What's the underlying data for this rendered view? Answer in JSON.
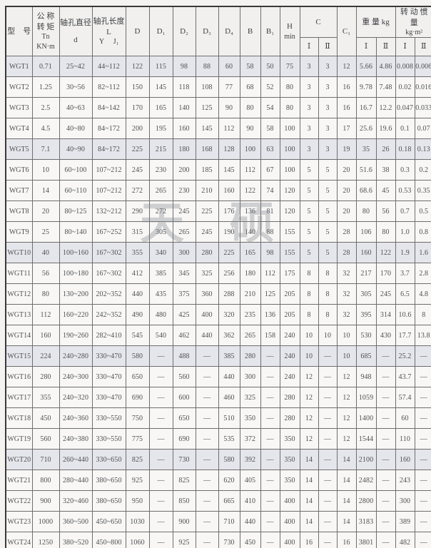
{
  "watermark": "天硕",
  "table": {
    "header": {
      "model": "型　号",
      "torque_lines": [
        "公 称",
        "转 矩",
        "Tn",
        "KN·m"
      ],
      "bore_dia_lines": [
        "轴孔直径",
        "d"
      ],
      "bore_len_lines": [
        "轴孔长度",
        "L"
      ],
      "bore_len_y": "Y",
      "bore_len_j": "J₁",
      "d": "D",
      "d1": "D₁",
      "d2": "D₂",
      "d3": "D₃",
      "d4": "D₄",
      "b": "B",
      "b1": "B₁",
      "h_lines": [
        "H",
        "min"
      ],
      "c": "C",
      "c1": "C₁",
      "weight": "重 量 kg",
      "inertia_lines": [
        "转 动 惯 量",
        "kg·m²"
      ],
      "sub_i": "Ⅰ",
      "sub_ii": "Ⅱ"
    },
    "rows": [
      [
        "WGT1",
        "0.71",
        "25~42",
        "44~112",
        "122",
        "115",
        "98",
        "88",
        "60",
        "58",
        "50",
        "75",
        "3",
        "3",
        "12",
        "5.66",
        "4.86",
        "0.008",
        "0.006"
      ],
      [
        "WGT2",
        "1.25",
        "30~56",
        "82~112",
        "150",
        "145",
        "118",
        "108",
        "77",
        "68",
        "52",
        "80",
        "3",
        "3",
        "16",
        "9.78",
        "7.48",
        "0.02",
        "0.016"
      ],
      [
        "WGT3",
        "2.5",
        "40~63",
        "84~142",
        "170",
        "165",
        "140",
        "125",
        "90",
        "80",
        "54",
        "80",
        "3",
        "3",
        "16",
        "16.7",
        "12.2",
        "0.047",
        "0.033"
      ],
      [
        "WGT4",
        "4.5",
        "40~80",
        "84~172",
        "200",
        "195",
        "160",
        "145",
        "112",
        "90",
        "58",
        "100",
        "3",
        "3",
        "17",
        "25.6",
        "19.6",
        "0.1",
        "0.07"
      ],
      [
        "WGT5",
        "7.1",
        "40~90",
        "84~172",
        "225",
        "215",
        "180",
        "168",
        "128",
        "100",
        "63",
        "100",
        "3",
        "3",
        "19",
        "35",
        "26",
        "0.18",
        "0.13"
      ],
      [
        "WGT6",
        "10",
        "60~100",
        "107~212",
        "245",
        "230",
        "200",
        "185",
        "145",
        "112",
        "67",
        "100",
        "5",
        "5",
        "20",
        "51.6",
        "38",
        "0.3",
        "0.2"
      ],
      [
        "WGT7",
        "14",
        "60~110",
        "107~212",
        "272",
        "265",
        "230",
        "210",
        "160",
        "122",
        "74",
        "120",
        "5",
        "5",
        "20",
        "68.6",
        "45",
        "0.53",
        "0.35"
      ],
      [
        "WGT8",
        "20",
        "80~125",
        "132~212",
        "290",
        "272",
        "245",
        "225",
        "176",
        "136",
        "81",
        "120",
        "5",
        "5",
        "20",
        "80",
        "56",
        "0.7",
        "0.5"
      ],
      [
        "WGT9",
        "25",
        "80~140",
        "167~252",
        "315",
        "305",
        "265",
        "245",
        "190",
        "140",
        "88",
        "155",
        "5",
        "5",
        "28",
        "106",
        "80",
        "1.0",
        "0.8"
      ],
      [
        "WGT10",
        "40",
        "100~160",
        "167~302",
        "355",
        "340",
        "300",
        "280",
        "225",
        "165",
        "98",
        "155",
        "5",
        "5",
        "28",
        "160",
        "122",
        "1.9",
        "1.6"
      ],
      [
        "WGT11",
        "56",
        "100~180",
        "167~302",
        "412",
        "385",
        "345",
        "325",
        "256",
        "180",
        "112",
        "175",
        "8",
        "8",
        "32",
        "217",
        "170",
        "3.7",
        "2.8"
      ],
      [
        "WGT12",
        "80",
        "130~200",
        "202~352",
        "440",
        "435",
        "375",
        "360",
        "288",
        "210",
        "125",
        "205",
        "8",
        "8",
        "32",
        "305",
        "245",
        "6.5",
        "4.8"
      ],
      [
        "WGT13",
        "112",
        "160~220",
        "242~352",
        "490",
        "480",
        "425",
        "400",
        "320",
        "235",
        "136",
        "205",
        "8",
        "8",
        "32",
        "395",
        "314",
        "10.6",
        "8"
      ],
      [
        "WGT14",
        "160",
        "190~260",
        "282~410",
        "545",
        "540",
        "462",
        "440",
        "362",
        "265",
        "158",
        "240",
        "10",
        "10",
        "10",
        "530",
        "430",
        "17.7",
        "13.8"
      ],
      [
        "WGT15",
        "224",
        "240~280",
        "330~470",
        "580",
        "—",
        "488",
        "—",
        "385",
        "280",
        "—",
        "240",
        "10",
        "—",
        "10",
        "685",
        "—",
        "25.2",
        "—"
      ],
      [
        "WGT16",
        "280",
        "240~300",
        "330~470",
        "650",
        "—",
        "560",
        "—",
        "440",
        "300",
        "—",
        "240",
        "12",
        "—",
        "12",
        "948",
        "—",
        "43.7",
        "—"
      ],
      [
        "WGT17",
        "355",
        "240~320",
        "330~470",
        "690",
        "—",
        "600",
        "—",
        "460",
        "325",
        "—",
        "280",
        "12",
        "—",
        "12",
        "1059",
        "—",
        "57.4",
        "—"
      ],
      [
        "WGT18",
        "450",
        "240~360",
        "330~550",
        "750",
        "—",
        "650",
        "—",
        "510",
        "350",
        "—",
        "280",
        "12",
        "—",
        "12",
        "1400",
        "—",
        "60",
        "—"
      ],
      [
        "WGT19",
        "560",
        "240~380",
        "330~550",
        "775",
        "—",
        "690",
        "—",
        "535",
        "372",
        "—",
        "350",
        "12",
        "—",
        "12",
        "1544",
        "—",
        "110",
        "—"
      ],
      [
        "WGT20",
        "710",
        "260~440",
        "330~650",
        "825",
        "—",
        "730",
        "—",
        "580",
        "392",
        "—",
        "350",
        "14",
        "—",
        "14",
        "2100",
        "—",
        "160",
        "—"
      ],
      [
        "WGT21",
        "800",
        "280~440",
        "380~650",
        "925",
        "—",
        "825",
        "—",
        "620",
        "405",
        "—",
        "350",
        "14",
        "—",
        "14",
        "2482",
        "—",
        "243",
        "—"
      ],
      [
        "WGT22",
        "900",
        "320~460",
        "380~650",
        "950",
        "—",
        "850",
        "—",
        "665",
        "410",
        "—",
        "400",
        "14",
        "—",
        "14",
        "2800",
        "—",
        "300",
        "—"
      ],
      [
        "WGT23",
        "1000",
        "360~500",
        "450~650",
        "1030",
        "—",
        "900",
        "—",
        "710",
        "440",
        "—",
        "400",
        "14",
        "—",
        "14",
        "3183",
        "—",
        "389",
        "—"
      ],
      [
        "WGT24",
        "1250",
        "380~520",
        "450~800",
        "1060",
        "—",
        "925",
        "—",
        "730",
        "450",
        "—",
        "400",
        "16",
        "—",
        "16",
        "3801",
        "—",
        "482",
        "—"
      ]
    ]
  }
}
